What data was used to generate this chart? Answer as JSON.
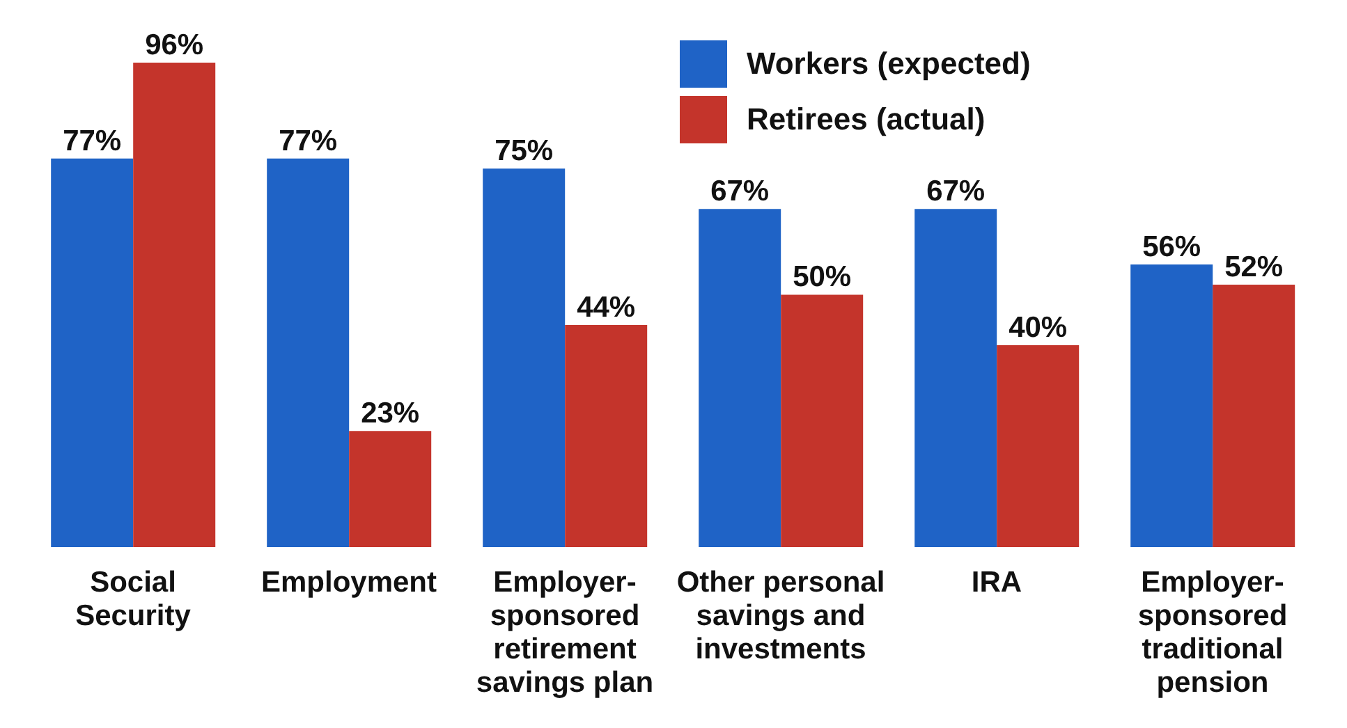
{
  "chart_data": {
    "type": "bar",
    "categories": [
      "Social Security",
      "Employment",
      "Employer-sponsored retirement savings plan",
      "Other personal savings and investments",
      "IRA",
      "Employer-sponsored traditional pension"
    ],
    "series": [
      {
        "name": "Workers (expected)",
        "color": "#1f63c6",
        "values": [
          77,
          77,
          75,
          67,
          67,
          56
        ],
        "value_labels": [
          "77%",
          "77%",
          "75%",
          "67%",
          "67%",
          "56%"
        ]
      },
      {
        "name": "Retirees (actual)",
        "color": "#c4342b",
        "values": [
          96,
          23,
          44,
          50,
          40,
          52
        ],
        "value_labels": [
          "96%",
          "23%",
          "44%",
          "50%",
          "40%",
          "52%"
        ]
      }
    ],
    "legend": "top right",
    "grid": false
  }
}
